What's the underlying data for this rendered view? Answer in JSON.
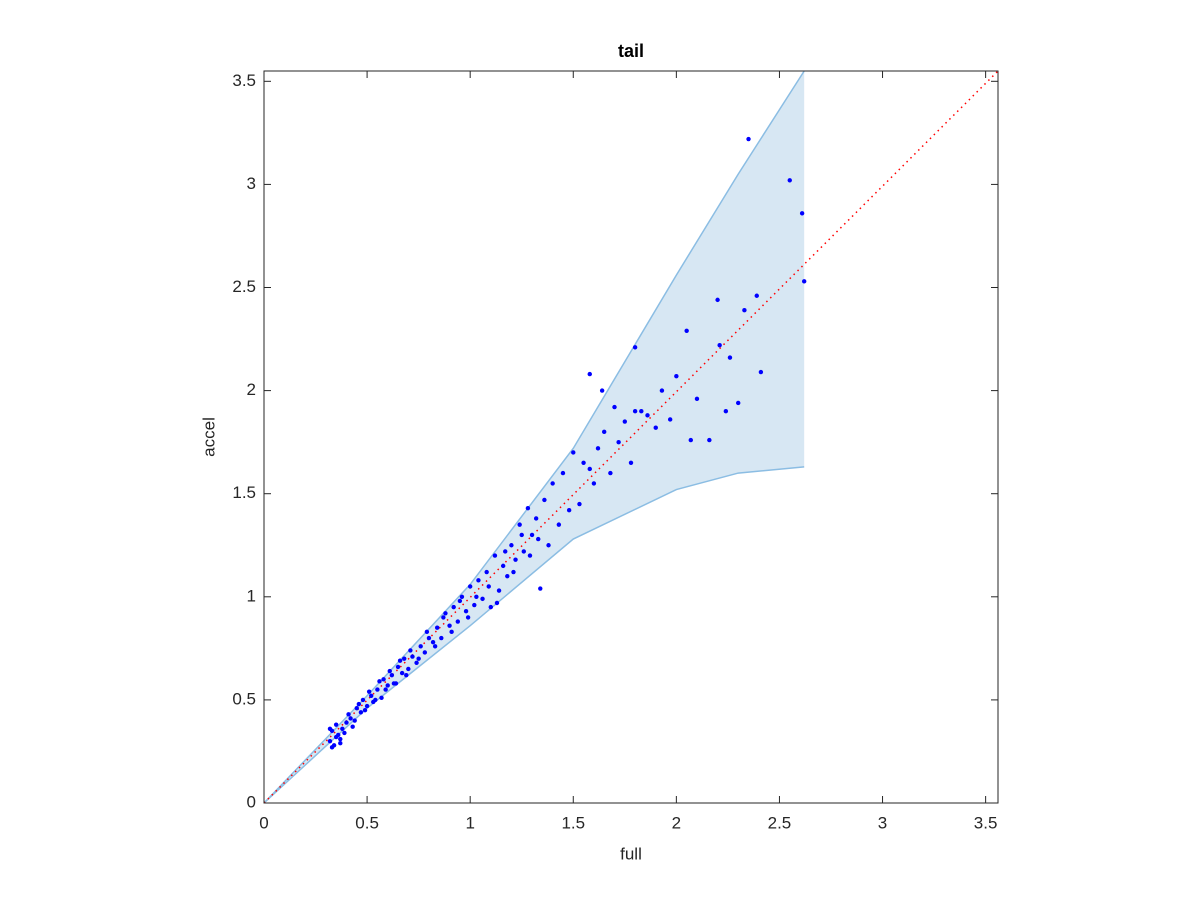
{
  "chart_data": {
    "type": "scatter",
    "title": "tail",
    "x_label": "full",
    "y_label": "accel",
    "xlim": [
      0,
      3.56
    ],
    "ylim": [
      0,
      3.55
    ],
    "xticks": [
      0,
      0.5,
      1,
      1.5,
      2,
      2.5,
      3,
      3.5
    ],
    "yticks": [
      0,
      0.5,
      1,
      1.5,
      2,
      2.5,
      3,
      3.5
    ],
    "grid": false,
    "band": {
      "x": [
        0,
        0.5,
        1,
        1.5,
        2,
        2.3,
        2.62
      ],
      "upper": [
        0,
        0.52,
        1.06,
        1.72,
        2.56,
        3.05,
        3.55
      ],
      "lower": [
        0,
        0.46,
        0.86,
        1.28,
        1.52,
        1.6,
        1.63
      ],
      "fill": "#d7e7f3",
      "edge": "#8bbde3"
    },
    "reference_line": {
      "x": [
        0,
        3.56
      ],
      "y": [
        0,
        3.55
      ],
      "color": "#ff0000"
    },
    "series": [
      {
        "color": "#0000ff",
        "x": [
          0.32,
          0.33,
          0.34,
          0.35,
          0.36,
          0.37,
          0.38,
          0.4,
          0.42,
          0.43,
          0.45,
          0.47,
          0.48,
          0.5,
          0.52,
          0.53,
          0.55,
          0.57,
          0.58,
          0.6,
          0.62,
          0.63,
          0.65,
          0.67,
          0.68,
          0.7,
          0.72,
          0.74,
          0.76,
          0.78,
          0.8,
          0.82,
          0.84,
          0.86,
          0.88,
          0.9,
          0.92,
          0.94,
          0.96,
          0.98,
          1.0,
          1.02,
          1.04,
          1.06,
          1.08,
          1.1,
          1.12,
          1.14,
          1.16,
          1.18,
          1.2,
          1.22,
          1.24,
          1.26,
          1.28,
          1.3,
          1.32,
          1.34,
          1.36,
          1.38,
          1.4,
          1.43,
          1.45,
          1.48,
          1.5,
          1.53,
          1.55,
          1.58,
          1.6,
          1.62,
          1.65,
          1.68,
          1.7,
          1.72,
          1.75,
          1.78,
          1.8,
          1.83,
          1.86,
          1.9,
          1.93,
          1.97,
          2.0,
          2.05,
          2.07,
          2.1,
          2.16,
          2.2,
          2.21,
          2.24,
          2.26,
          2.3,
          2.33,
          2.35,
          2.39,
          2.41,
          2.55,
          2.61,
          2.62,
          0.32,
          0.33,
          0.35,
          0.37,
          0.39,
          0.41,
          0.44,
          0.46,
          0.49,
          0.51,
          0.54,
          0.56,
          0.59,
          0.61,
          0.64,
          0.66,
          0.69,
          0.71,
          0.75,
          0.79,
          0.83,
          0.87,
          0.91,
          0.95,
          0.99,
          1.03,
          1.09,
          1.13,
          1.17,
          1.21,
          1.25,
          1.29,
          1.33,
          1.58,
          1.64,
          1.8
        ],
        "values": [
          0.3,
          0.35,
          0.28,
          0.38,
          0.33,
          0.31,
          0.36,
          0.39,
          0.41,
          0.37,
          0.46,
          0.44,
          0.5,
          0.47,
          0.52,
          0.49,
          0.55,
          0.51,
          0.6,
          0.57,
          0.62,
          0.58,
          0.66,
          0.63,
          0.7,
          0.65,
          0.71,
          0.68,
          0.76,
          0.73,
          0.8,
          0.78,
          0.85,
          0.8,
          0.92,
          0.86,
          0.95,
          0.88,
          1.0,
          0.93,
          1.05,
          0.96,
          1.08,
          0.99,
          1.12,
          0.95,
          1.2,
          1.03,
          1.15,
          1.1,
          1.25,
          1.18,
          1.35,
          1.22,
          1.43,
          1.3,
          1.38,
          1.04,
          1.47,
          1.25,
          1.55,
          1.35,
          1.6,
          1.42,
          1.7,
          1.45,
          1.65,
          2.08,
          1.55,
          1.72,
          1.8,
          1.6,
          1.92,
          1.75,
          1.85,
          1.65,
          2.21,
          1.9,
          1.88,
          1.82,
          2.0,
          1.86,
          2.07,
          2.29,
          1.76,
          1.96,
          1.76,
          2.44,
          2.22,
          1.9,
          2.16,
          1.94,
          2.39,
          3.22,
          2.46,
          2.09,
          3.02,
          2.86,
          2.53,
          0.36,
          0.27,
          0.32,
          0.29,
          0.34,
          0.43,
          0.4,
          0.48,
          0.45,
          0.54,
          0.5,
          0.59,
          0.55,
          0.64,
          0.58,
          0.69,
          0.62,
          0.74,
          0.7,
          0.83,
          0.76,
          0.9,
          0.83,
          0.98,
          0.9,
          1.0,
          1.05,
          0.97,
          1.22,
          1.12,
          1.3,
          1.2,
          1.28,
          1.62,
          2.0,
          1.9
        ]
      }
    ]
  }
}
